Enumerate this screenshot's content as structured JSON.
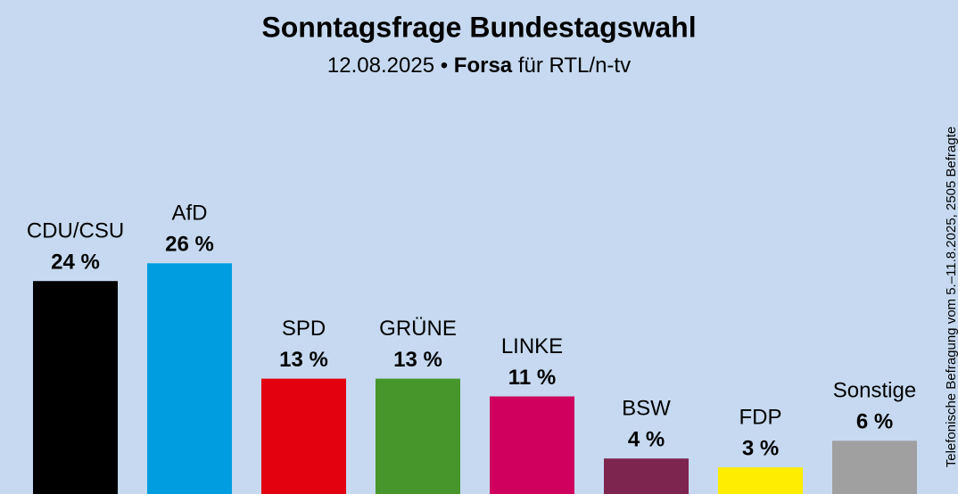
{
  "chart_data": {
    "type": "bar",
    "title": "Sonntagsfrage Bundestagswahl",
    "subtitle": [
      "12.08.2025 •",
      "Forsa",
      "für RTL/n-tv"
    ],
    "note": "Telefonische Befragung vom 5.–11.8.2025, 2505 Befragte",
    "categories": [
      "CDU/CSU",
      "AfD",
      "SPD",
      "GRÜNE",
      "LINKE",
      "BSW",
      "FDP",
      "Sonstige"
    ],
    "values": [
      24,
      26,
      13,
      13,
      11,
      4,
      3,
      6
    ],
    "value_labels": [
      "24 %",
      "26 %",
      "13 %",
      "13 %",
      "11 %",
      "4 %",
      "3 %",
      "6 %"
    ],
    "colors": [
      "#000000",
      "#009ee0",
      "#e3000f",
      "#46962b",
      "#d0005e",
      "#7d254f",
      "#ffed00",
      "#a0a0a0"
    ]
  }
}
